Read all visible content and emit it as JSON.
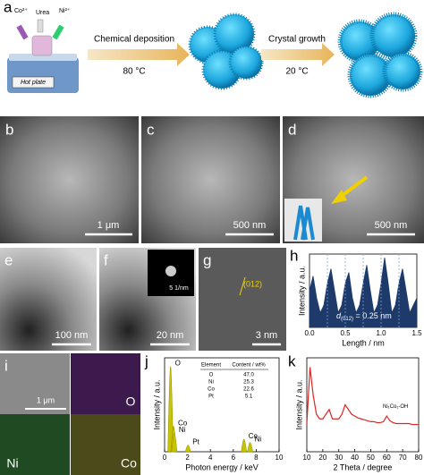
{
  "panels": {
    "a": {
      "label": "a",
      "reagents": [
        "Co²⁺",
        "Urea",
        "Ni²⁺"
      ],
      "device": "Hot plate",
      "step1": {
        "title": "Chemical  deposition",
        "temp": "80 °C"
      },
      "step2": {
        "title": "Crystal growth",
        "temp": "20 °C"
      }
    },
    "b": {
      "label": "b",
      "scale": "1 μm"
    },
    "c": {
      "label": "c",
      "scale": "500 nm"
    },
    "d": {
      "label": "d",
      "scale": "500 nm"
    },
    "e": {
      "label": "e",
      "scale": "100 nm"
    },
    "f": {
      "label": "f",
      "scale": "20 nm",
      "inset_scale": "5 1/nm"
    },
    "g": {
      "label": "g",
      "plane": "(012)",
      "scale": "3 nm"
    },
    "i": {
      "label": "i",
      "scale": "1 μm",
      "maps": [
        "O",
        "Ni",
        "Co"
      ]
    }
  },
  "chart_data": [
    {
      "type": "area",
      "panel_label": "h",
      "xlabel": "Length / nm",
      "ylabel": "Intensity / a.u.",
      "annotation": {
        "symbol": "d",
        "subscript": "(012)",
        "text": " = 0.25 nm"
      },
      "x": [
        0,
        0.05,
        0.1,
        0.15,
        0.2,
        0.25,
        0.3,
        0.35,
        0.4,
        0.45,
        0.5,
        0.55,
        0.6,
        0.65,
        0.7,
        0.75,
        0.8,
        0.85,
        0.9,
        0.95,
        1.0,
        1.05,
        1.1,
        1.15,
        1.2,
        1.25,
        1.3,
        1.35,
        1.4,
        1.45,
        1.5
      ],
      "values": [
        5,
        7,
        4,
        2,
        3,
        6,
        8,
        5,
        2,
        3,
        6,
        7.5,
        4,
        2,
        3,
        6,
        8.5,
        5,
        2,
        3,
        6,
        9.5,
        6,
        2,
        3,
        6,
        8,
        5,
        2,
        3,
        4
      ],
      "guide_lines": [
        0.25,
        0.5,
        0.75,
        1.0,
        1.25
      ],
      "color": "#1d3a6b",
      "xlim": [
        0,
        1.5
      ],
      "ylim": [
        0,
        10
      ],
      "xticks": [
        {
          "value": 0,
          "label": "0.0"
        },
        0.5,
        {
          "value": 1,
          "label": "1.0"
        },
        1.5
      ]
    },
    {
      "type": "spectrum",
      "panel_label": "j",
      "xlabel": "Photon energy / keV",
      "ylabel": "Intensity / a.u.",
      "peaks": [
        {
          "label": "O",
          "x": 0.52,
          "value": 100
        },
        {
          "label": "Co",
          "x": 0.78,
          "value": 30
        },
        {
          "label": "Ni",
          "x": 0.85,
          "value": 22
        },
        {
          "label": "Pt",
          "x": 2.05,
          "value": 8
        },
        {
          "label": "Co",
          "x": 6.93,
          "value": 15
        },
        {
          "label": "Ni",
          "x": 7.47,
          "value": 11
        }
      ],
      "table": {
        "header": [
          "Element",
          "Content / wt%"
        ],
        "rows": [
          [
            "O",
            "47.0"
          ],
          [
            "Ni",
            "25.3"
          ],
          [
            "Co",
            "22.6"
          ],
          [
            "Pt",
            "5.1"
          ]
        ]
      },
      "color": "#c9c400",
      "xlim": [
        0,
        10
      ],
      "ylim": [
        0,
        110
      ],
      "xticks": [
        0,
        2,
        4,
        6,
        8,
        10
      ]
    },
    {
      "type": "line",
      "panel_label": "k",
      "xlabel": "2 Theta / degree",
      "ylabel": "Intensity / a.u.",
      "series_label": "Ni₁Co₁-OH",
      "x": [
        10,
        12,
        14,
        16,
        18,
        20,
        22,
        24,
        26,
        28,
        30,
        32,
        34,
        36,
        38,
        40,
        42,
        44,
        46,
        48,
        50,
        52,
        54,
        56,
        58,
        60,
        62,
        64,
        66,
        68,
        70,
        72,
        74,
        76,
        78,
        80
      ],
      "values": [
        3,
        9,
        6,
        4,
        3.5,
        3.5,
        4,
        4.5,
        3.5,
        3.5,
        3.5,
        4,
        5,
        4.5,
        4,
        3.8,
        3.6,
        3.5,
        3.4,
        3.3,
        3.2,
        3.2,
        3.1,
        3.1,
        3.2,
        3.8,
        3.3,
        3.1,
        3.0,
        3.0,
        3.0,
        3.0,
        3.0,
        2.9,
        2.9,
        2.9
      ],
      "color": "#e02424",
      "xlim": [
        10,
        80
      ],
      "ylim": [
        0,
        10
      ],
      "xticks": [
        10,
        20,
        30,
        40,
        50,
        60,
        70,
        80
      ]
    }
  ]
}
